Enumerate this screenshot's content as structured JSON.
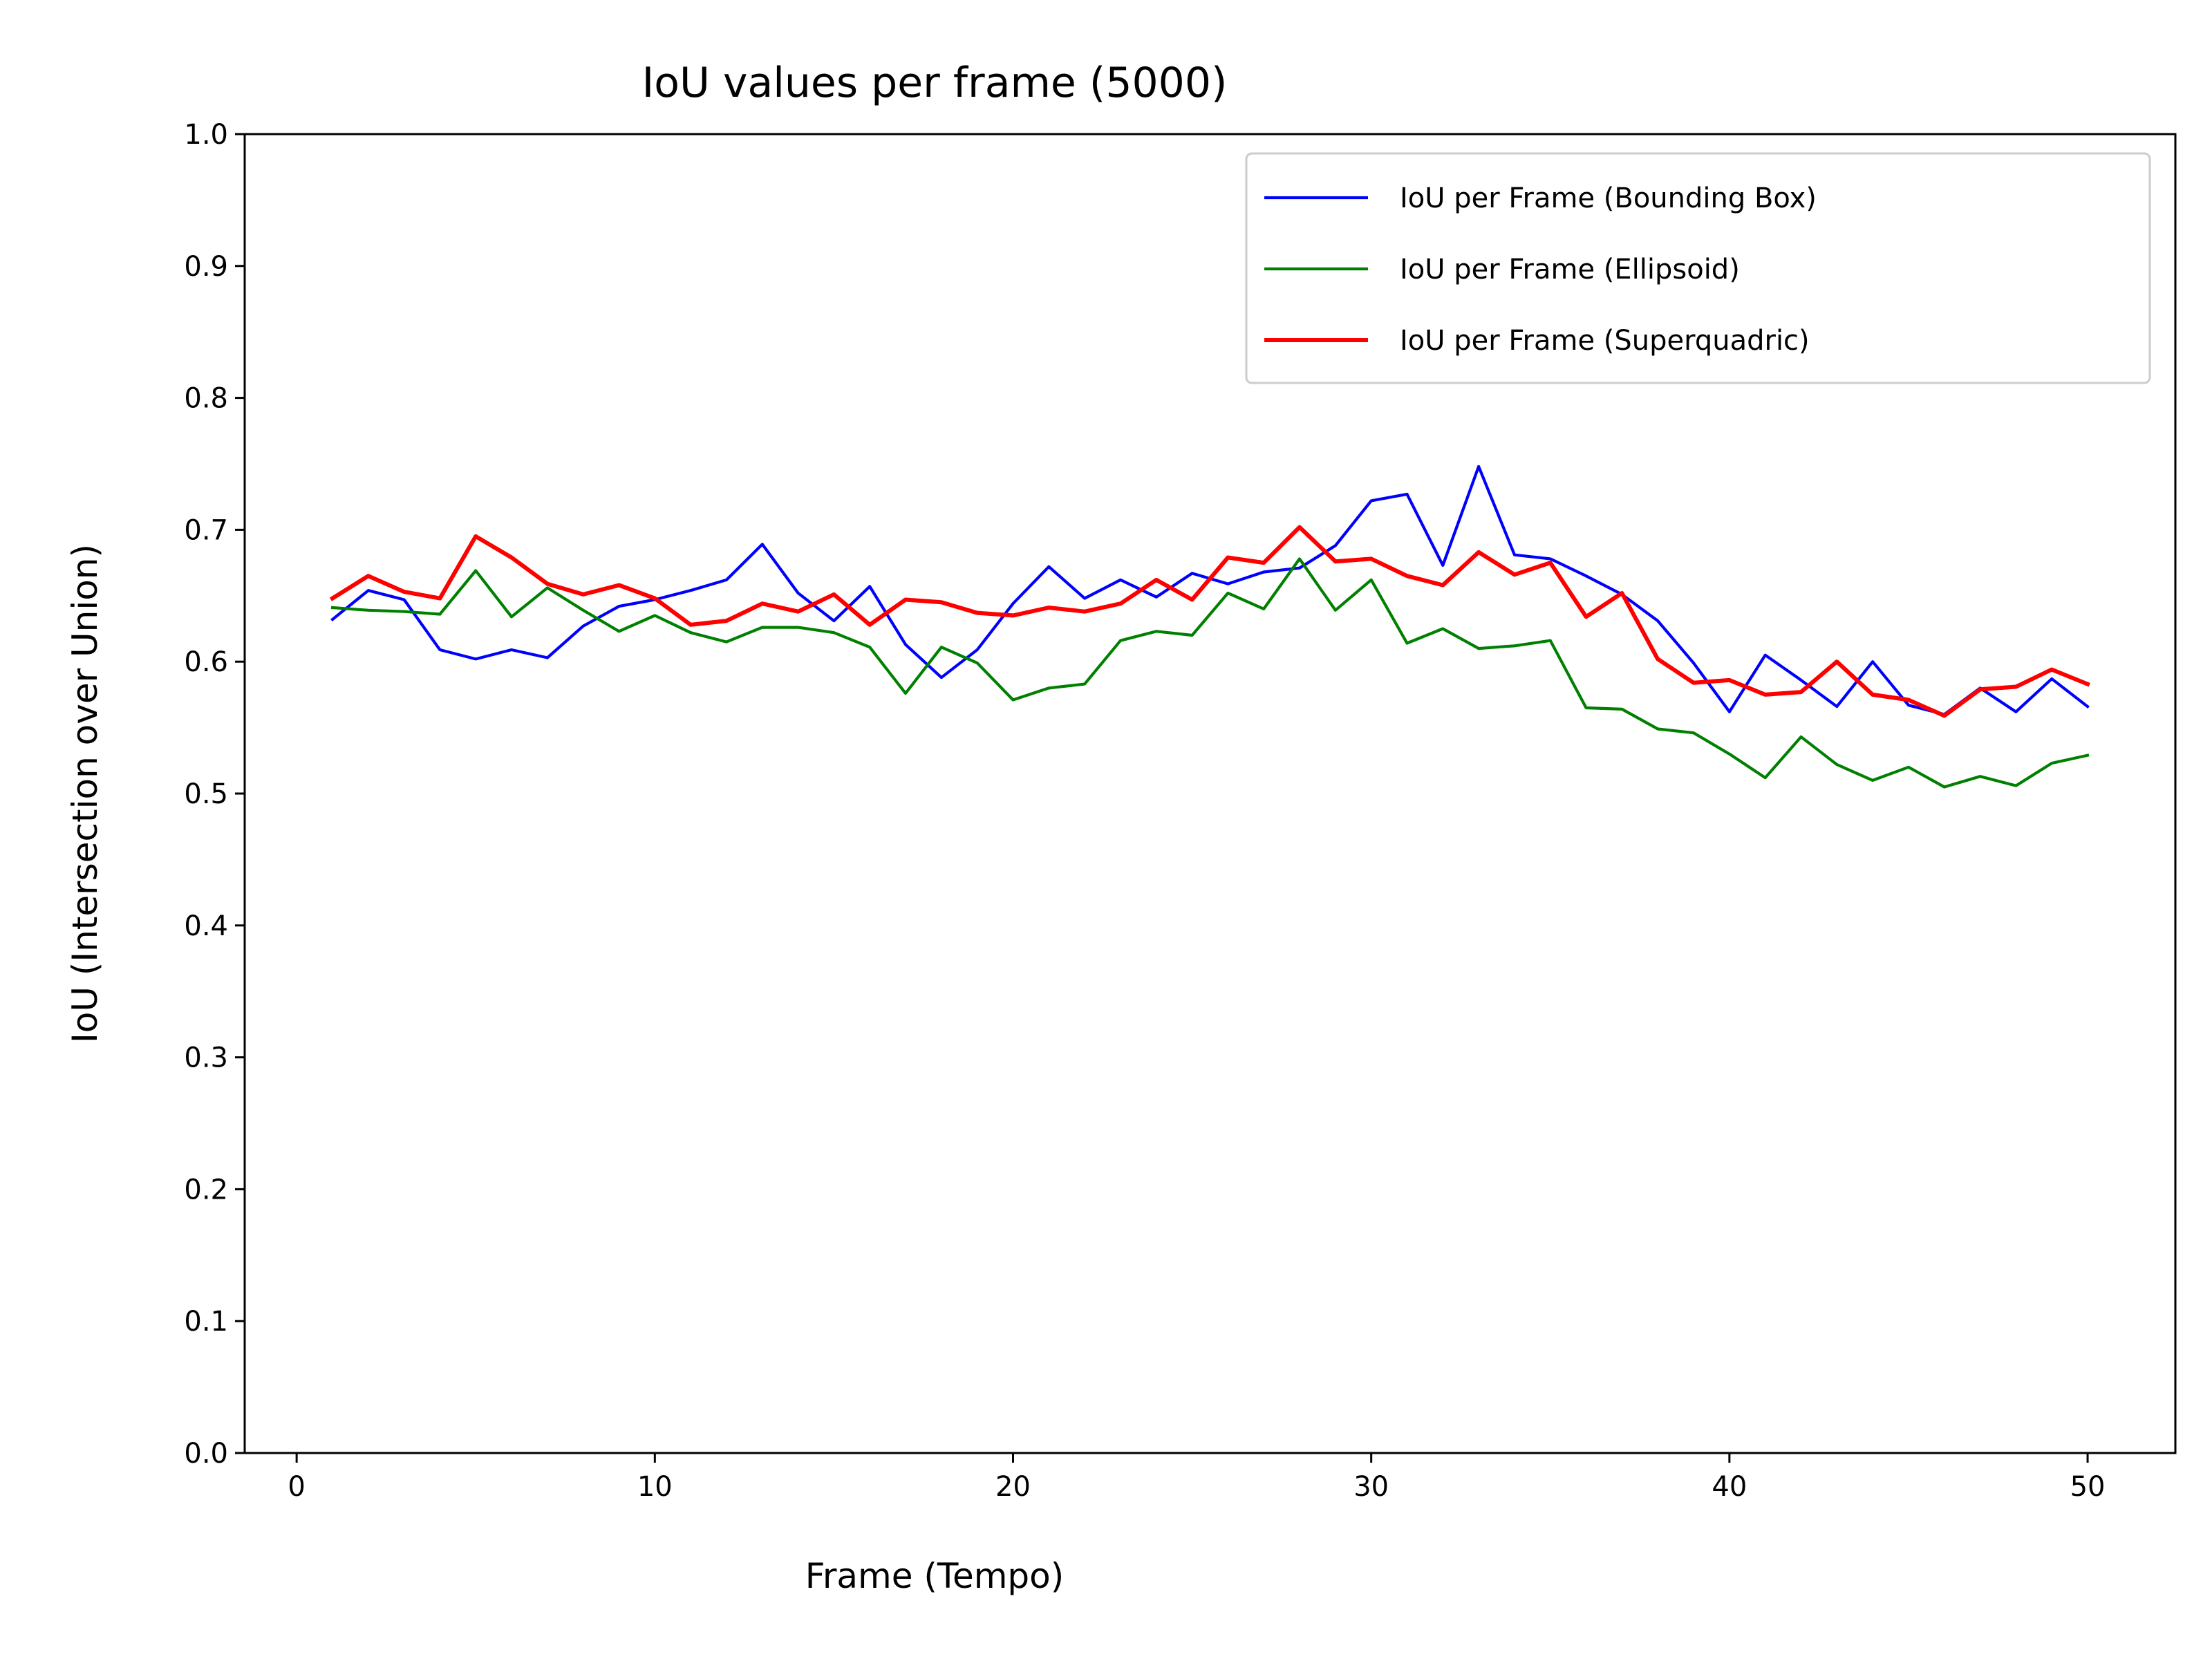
{
  "chart_data": {
    "type": "line",
    "title": "IoU values per frame (5000)",
    "xlabel": "Frame (Tempo)",
    "ylabel": "IoU (Intersection over Union)",
    "xlim": [
      -1.45,
      52.45
    ],
    "ylim": [
      0.0,
      1.0
    ],
    "xticks": [
      0,
      10,
      20,
      30,
      40,
      50
    ],
    "xtick_labels": [
      "0",
      "10",
      "20",
      "30",
      "40",
      "50"
    ],
    "yticks": [
      0.0,
      0.1,
      0.2,
      0.3,
      0.4,
      0.5,
      0.6,
      0.7,
      0.8,
      0.9,
      1.0
    ],
    "ytick_labels": [
      "0.0",
      "0.1",
      "0.2",
      "0.3",
      "0.4",
      "0.5",
      "0.6",
      "0.7",
      "0.8",
      "0.9",
      "1.0"
    ],
    "grid": false,
    "legend_position": "top-right",
    "x": [
      1,
      2,
      3,
      4,
      5,
      6,
      7,
      8,
      9,
      10,
      11,
      12,
      13,
      14,
      15,
      16,
      17,
      18,
      19,
      20,
      21,
      22,
      23,
      24,
      25,
      26,
      27,
      28,
      29,
      30,
      31,
      32,
      33,
      34,
      35,
      36,
      37,
      38,
      39,
      40,
      41,
      42,
      43,
      44,
      45,
      46,
      47,
      48,
      49,
      50
    ],
    "series": [
      {
        "name": "IoU per Frame (Bounding Box)",
        "color": "#0000ff",
        "values": [
          0.632,
          0.654,
          0.647,
          0.609,
          0.602,
          0.609,
          0.603,
          0.627,
          0.642,
          0.647,
          0.654,
          0.662,
          0.689,
          0.652,
          0.631,
          0.657,
          0.613,
          0.588,
          0.609,
          0.644,
          0.672,
          0.648,
          0.662,
          0.649,
          0.667,
          0.659,
          0.668,
          0.671,
          0.688,
          0.722,
          0.727,
          0.673,
          0.748,
          0.681,
          0.678,
          0.665,
          0.651,
          0.631,
          0.599,
          0.562,
          0.605,
          0.586,
          0.566,
          0.6,
          0.567,
          0.56,
          0.58,
          0.562,
          0.587,
          0.566
        ]
      },
      {
        "name": "IoU per Frame (Ellipsoid)",
        "color": "#008000",
        "values": [
          0.641,
          0.639,
          0.638,
          0.636,
          0.669,
          0.634,
          0.656,
          0.639,
          0.623,
          0.635,
          0.622,
          0.615,
          0.626,
          0.626,
          0.622,
          0.611,
          0.576,
          0.611,
          0.599,
          0.571,
          0.58,
          0.583,
          0.616,
          0.623,
          0.62,
          0.652,
          0.64,
          0.678,
          0.639,
          0.662,
          0.614,
          0.625,
          0.61,
          0.612,
          0.616,
          0.565,
          0.564,
          0.549,
          0.546,
          0.53,
          0.512,
          0.543,
          0.522,
          0.51,
          0.52,
          0.505,
          0.513,
          0.506,
          0.523,
          0.529
        ]
      },
      {
        "name": "IoU per Frame (Superquadric)",
        "color": "#ff0000",
        "values": [
          0.648,
          0.665,
          0.653,
          0.648,
          0.695,
          0.679,
          0.659,
          0.651,
          0.658,
          0.648,
          0.628,
          0.631,
          0.644,
          0.638,
          0.651,
          0.628,
          0.647,
          0.645,
          0.637,
          0.635,
          0.641,
          0.638,
          0.644,
          0.662,
          0.647,
          0.679,
          0.675,
          0.702,
          0.676,
          0.678,
          0.665,
          0.658,
          0.683,
          0.666,
          0.675,
          0.634,
          0.652,
          0.602,
          0.584,
          0.586,
          0.575,
          0.577,
          0.6,
          0.575,
          0.571,
          0.559,
          0.579,
          0.581,
          0.594,
          0.583
        ]
      }
    ]
  }
}
